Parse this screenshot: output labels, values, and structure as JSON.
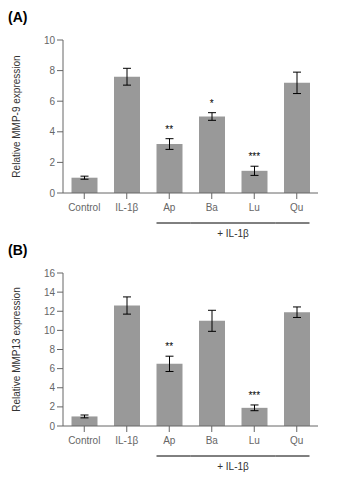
{
  "chart_data": [
    {
      "type": "bar",
      "title": "(A)",
      "ylabel": "Relative MMP-9 expression",
      "categories": [
        "Control",
        "IL-1β",
        "Ap",
        "Ba",
        "Lu",
        "Qu"
      ],
      "values": [
        1.0,
        7.6,
        3.2,
        5.0,
        1.45,
        7.2
      ],
      "errors": [
        0.1,
        0.55,
        0.35,
        0.25,
        0.3,
        0.7
      ],
      "color": "#999999",
      "ylim": [
        0,
        10
      ],
      "yticks": [
        0,
        2,
        4,
        6,
        8,
        10
      ],
      "annotations": [
        {
          "category": "Ap",
          "text": "**"
        },
        {
          "category": "Ba",
          "text": "*"
        },
        {
          "category": "Lu",
          "text": "***"
        }
      ],
      "bracket": {
        "from": "Ap",
        "to": "Qu",
        "label": "+ IL-1β"
      }
    },
    {
      "type": "bar",
      "title": "(B)",
      "ylabel": "Relative MMP13 expression",
      "categories": [
        "Control",
        "IL-1β",
        "Ap",
        "Ba",
        "Lu",
        "Qu"
      ],
      "values": [
        1.0,
        12.6,
        6.5,
        11.0,
        1.9,
        11.9
      ],
      "errors": [
        0.15,
        0.9,
        0.8,
        1.1,
        0.3,
        0.55
      ],
      "color": "#999999",
      "ylim": [
        0,
        16
      ],
      "yticks": [
        0,
        2,
        4,
        6,
        8,
        10,
        12,
        14,
        16
      ],
      "annotations": [
        {
          "category": "Ap",
          "text": "**"
        },
        {
          "category": "Lu",
          "text": "***"
        }
      ],
      "bracket": {
        "from": "Ap",
        "to": "Qu",
        "label": "+ IL-1β"
      }
    }
  ]
}
